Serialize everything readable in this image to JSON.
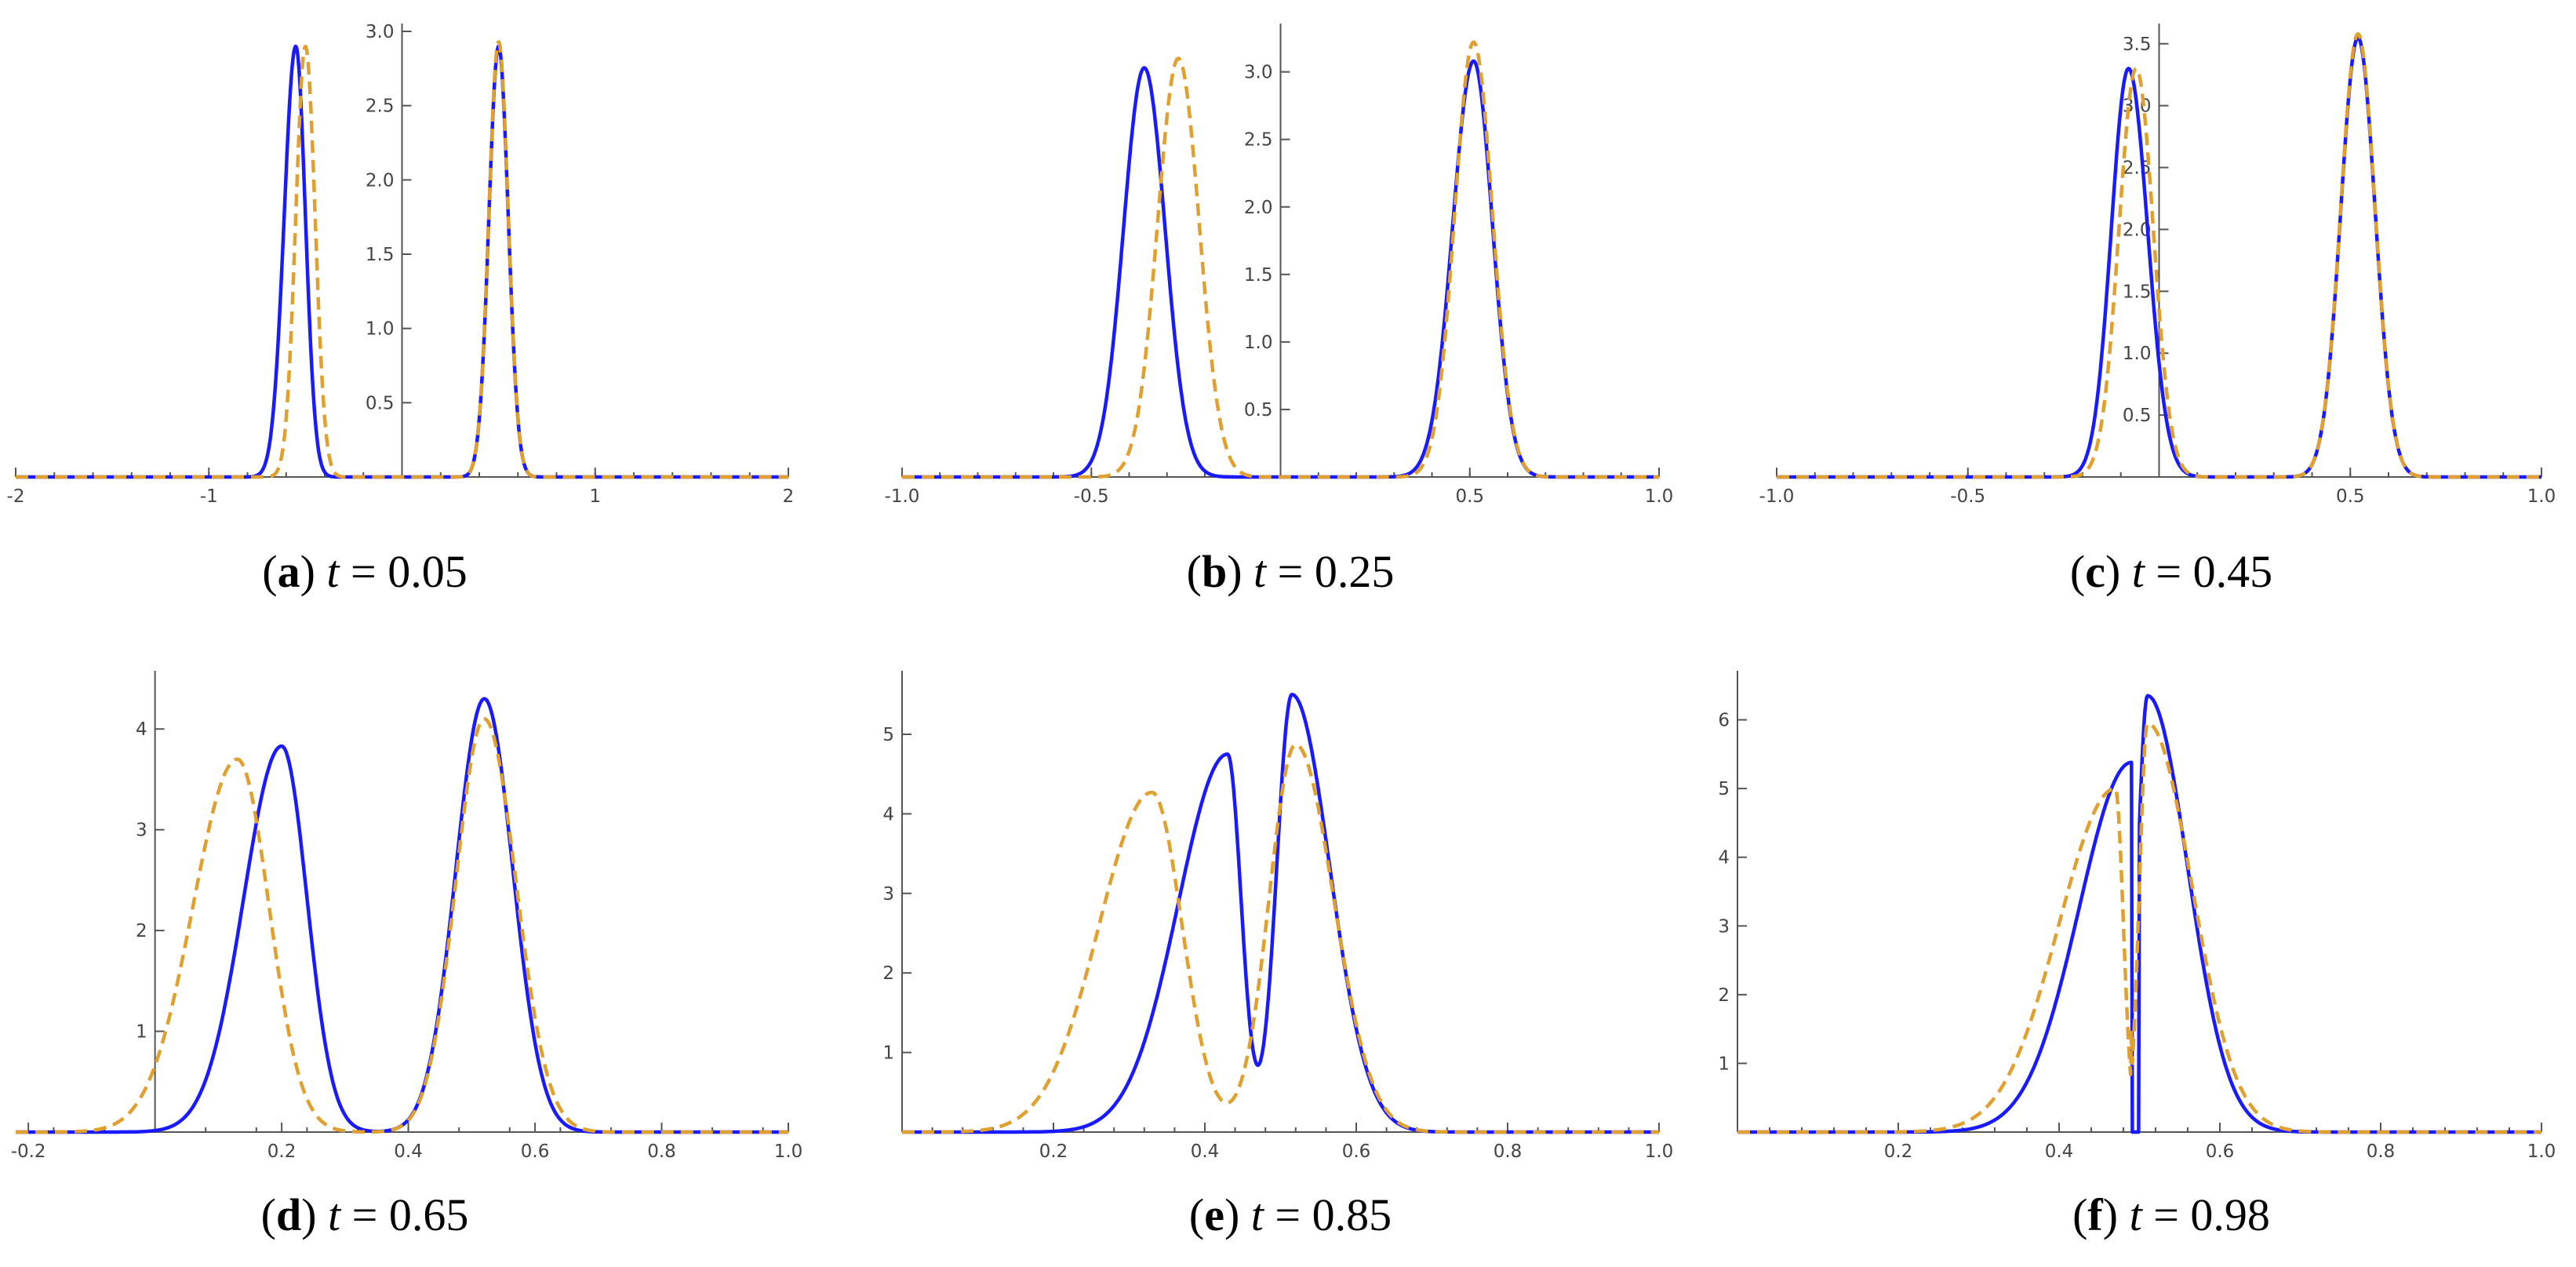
{
  "chart_data": [
    {
      "id": "a",
      "tag": "a",
      "caption_var": "t",
      "caption_eq": "=",
      "caption_value": "0.05",
      "type": "line",
      "xlim": [
        -2,
        2
      ],
      "ylim": [
        0,
        3
      ],
      "x_ticks": [
        -2,
        -1,
        1,
        2
      ],
      "x_tick_labels": [
        "-2",
        "-1",
        "1",
        "2"
      ],
      "y_ticks": [
        0.5,
        1.0,
        1.5,
        2.0,
        2.5,
        3.0
      ],
      "y_tick_labels": [
        "0.5",
        "1.0",
        "1.5",
        "2.0",
        "2.5",
        "3.0"
      ],
      "series": [
        {
          "style": "solid",
          "color": "#1a1aff",
          "components": [
            {
              "peak_x": -0.55,
              "height": 2.9,
              "width_left": 0.06,
              "width_right": 0.05
            },
            {
              "peak_x": 0.5,
              "height": 2.9,
              "width_left": 0.05,
              "width_right": 0.05
            }
          ]
        },
        {
          "style": "dashed",
          "color": "#e0a030",
          "components": [
            {
              "peak_x": -0.5,
              "height": 2.9,
              "width_left": 0.05,
              "width_right": 0.05
            },
            {
              "peak_x": 0.5,
              "height": 2.93,
              "width_left": 0.05,
              "width_right": 0.05
            }
          ]
        }
      ]
    },
    {
      "id": "b",
      "tag": "b",
      "caption_var": "t",
      "caption_eq": "=",
      "caption_value": "0.25",
      "type": "line",
      "xlim": [
        -1.0,
        1.0
      ],
      "ylim": [
        0,
        3.3
      ],
      "x_ticks": [
        -1.0,
        -0.5,
        0.5,
        1.0
      ],
      "x_tick_labels": [
        "-1.0",
        "-0.5",
        "0.5",
        "1.0"
      ],
      "y_ticks": [
        0.5,
        1.0,
        1.5,
        2.0,
        2.5,
        3.0
      ],
      "y_tick_labels": [
        "0.5",
        "1.0",
        "1.5",
        "2.0",
        "2.5",
        "3.0"
      ],
      "series": [
        {
          "style": "solid",
          "color": "#1a1aff",
          "components": [
            {
              "peak_x": -0.36,
              "height": 3.03,
              "width_left": 0.055,
              "width_right": 0.055
            },
            {
              "peak_x": 0.51,
              "height": 3.08,
              "width_left": 0.055,
              "width_right": 0.05
            }
          ]
        },
        {
          "style": "dashed",
          "color": "#e0a030",
          "components": [
            {
              "peak_x": -0.27,
              "height": 3.1,
              "width_left": 0.055,
              "width_right": 0.055
            },
            {
              "peak_x": 0.51,
              "height": 3.22,
              "width_left": 0.05,
              "width_right": 0.05
            }
          ]
        }
      ]
    },
    {
      "id": "c",
      "tag": "c",
      "caption_var": "t",
      "caption_eq": "=",
      "caption_value": "0.45",
      "type": "line",
      "xlim": [
        -1.0,
        1.0
      ],
      "ylim": [
        0,
        3.6
      ],
      "x_ticks": [
        -1.0,
        -0.5,
        0.5,
        1.0
      ],
      "x_tick_labels": [
        "-1.0",
        "-0.5",
        "0.5",
        "1.0"
      ],
      "y_ticks": [
        0.5,
        1.0,
        1.5,
        2.0,
        2.5,
        3.0,
        3.5
      ],
      "y_tick_labels": [
        "0.5",
        "1.0",
        "1.5",
        "2.0",
        "2.5",
        "3.0",
        "3.5"
      ],
      "series": [
        {
          "style": "solid",
          "color": "#1a1aff",
          "components": [
            {
              "peak_x": -0.08,
              "height": 3.3,
              "width_left": 0.045,
              "width_right": 0.05
            },
            {
              "peak_x": 0.52,
              "height": 3.55,
              "width_left": 0.045,
              "width_right": 0.045
            }
          ]
        },
        {
          "style": "dashed",
          "color": "#e0a030",
          "components": [
            {
              "peak_x": -0.06,
              "height": 3.3,
              "width_left": 0.045,
              "width_right": 0.045
            },
            {
              "peak_x": 0.52,
              "height": 3.58,
              "width_left": 0.045,
              "width_right": 0.045
            }
          ]
        }
      ]
    },
    {
      "id": "d",
      "tag": "d",
      "caption_var": "t",
      "caption_eq": "=",
      "caption_value": "0.65",
      "type": "line",
      "xlim": [
        -0.22,
        1.0
      ],
      "ylim": [
        0,
        4.5
      ],
      "x_ticks": [
        -0.2,
        0.2,
        0.4,
        0.6,
        0.8,
        1.0
      ],
      "x_tick_labels": [
        "-0.2",
        "0.2",
        "0.4",
        "0.6",
        "0.8",
        "1.0"
      ],
      "y_ticks": [
        1,
        2,
        3,
        4
      ],
      "y_tick_labels": [
        "1",
        "2",
        "3",
        "4"
      ],
      "series": [
        {
          "style": "solid",
          "color": "#1a1aff",
          "components": [
            {
              "peak_x": 0.2,
              "height": 3.83,
              "width_left": 0.06,
              "width_right": 0.04
            },
            {
              "peak_x": 0.52,
              "height": 4.3,
              "width_left": 0.045,
              "width_right": 0.045
            }
          ]
        },
        {
          "style": "dashed",
          "color": "#e0a030",
          "components": [
            {
              "peak_x": 0.13,
              "height": 3.7,
              "width_left": 0.07,
              "width_right": 0.05
            },
            {
              "peak_x": 0.52,
              "height": 4.1,
              "width_left": 0.045,
              "width_right": 0.05
            }
          ]
        }
      ]
    },
    {
      "id": "e",
      "tag": "e",
      "caption_var": "t",
      "caption_eq": "=",
      "caption_value": "0.85",
      "type": "line",
      "xlim": [
        0,
        1.0
      ],
      "ylim": [
        0,
        5.7
      ],
      "x_ticks": [
        0.2,
        0.4,
        0.6,
        0.8,
        1.0
      ],
      "x_tick_labels": [
        "0.2",
        "0.4",
        "0.6",
        "0.8",
        "1.0"
      ],
      "y_ticks": [
        1,
        2,
        3,
        4,
        5
      ],
      "y_tick_labels": [
        "1",
        "2",
        "3",
        "4",
        "5"
      ],
      "series": [
        {
          "style": "solid",
          "color": "#1a1aff",
          "components": [
            {
              "peak_x": 0.43,
              "height": 4.75,
              "width_left": 0.065,
              "width_right": 0.018
            },
            {
              "peak_x": 0.515,
              "height": 5.5,
              "width_left": 0.02,
              "width_right": 0.05
            }
          ]
        },
        {
          "style": "dashed",
          "color": "#e0a030",
          "components": [
            {
              "peak_x": 0.33,
              "height": 4.27,
              "width_left": 0.07,
              "width_right": 0.04
            },
            {
              "peak_x": 0.52,
              "height": 4.87,
              "width_left": 0.035,
              "width_right": 0.05
            }
          ]
        }
      ]
    },
    {
      "id": "f",
      "tag": "f",
      "caption_var": "t",
      "caption_eq": "=",
      "caption_value": "0.98",
      "type": "line",
      "xlim": [
        0,
        1.0
      ],
      "ylim": [
        0,
        6.6
      ],
      "x_ticks": [
        0.2,
        0.4,
        0.6,
        0.8,
        1.0
      ],
      "x_tick_labels": [
        "0.2",
        "0.4",
        "0.6",
        "0.8",
        "1.0"
      ],
      "y_ticks": [
        1,
        2,
        3,
        4,
        5,
        6
      ],
      "y_tick_labels": [
        "1",
        "2",
        "3",
        "4",
        "5",
        "6"
      ],
      "series": [
        {
          "style": "solid",
          "color": "#1a1aff",
          "components": [
            {
              "peak_x": 0.49,
              "height": 5.38,
              "width_left": 0.065,
              "width_right": 0.0,
              "cut_x": 0.5
            },
            {
              "peak_x": 0.51,
              "height": 6.35,
              "width_left": 0.012,
              "width_right": 0.05,
              "cut_left_x": 0.5
            }
          ]
        },
        {
          "style": "dashed",
          "color": "#e0a030",
          "components": [
            {
              "peak_x": 0.47,
              "height": 5.0,
              "width_left": 0.07,
              "width_right": 0.01,
              "cut_x": 0.49
            },
            {
              "peak_x": 0.51,
              "height": 5.95,
              "width_left": 0.01,
              "width_right": 0.055,
              "cut_left_x": 0.49
            }
          ]
        }
      ]
    }
  ]
}
